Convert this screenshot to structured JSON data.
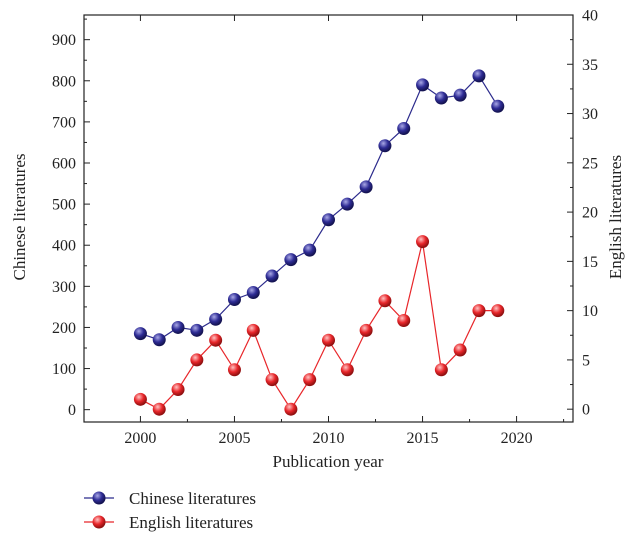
{
  "chart_data": {
    "type": "line",
    "xlabel": "Publication year",
    "ylabel": "Chinese literatures",
    "y2label": "English literatures",
    "xlim": [
      1997,
      2023
    ],
    "ylim": [
      -30,
      960
    ],
    "y2lim": [
      -1.3,
      40
    ],
    "x_ticks": [
      2000,
      2005,
      2010,
      2015,
      2020
    ],
    "y_ticks": [
      0,
      100,
      200,
      300,
      400,
      500,
      600,
      700,
      800,
      900
    ],
    "y2_ticks": [
      0,
      5,
      10,
      15,
      20,
      25,
      30,
      35,
      40
    ],
    "x": [
      2000,
      2001,
      2002,
      2003,
      2004,
      2005,
      2006,
      2007,
      2008,
      2009,
      2010,
      2011,
      2012,
      2013,
      2014,
      2015,
      2016,
      2017,
      2018,
      2019
    ],
    "series": [
      {
        "name": "Chinese literatures",
        "axis": "left",
        "color": "#2b2a8c",
        "values": [
          185,
          170,
          200,
          193,
          220,
          268,
          285,
          325,
          365,
          388,
          462,
          500,
          542,
          642,
          684,
          790,
          758,
          765,
          812,
          738
        ]
      },
      {
        "name": "English literatures",
        "axis": "right",
        "color": "#e8262a",
        "values": [
          1,
          0,
          2,
          5,
          7,
          4,
          8,
          3,
          0,
          3,
          7,
          4,
          8,
          11,
          9,
          17,
          4,
          6,
          10,
          10
        ]
      }
    ],
    "legend_position": "bottom-left",
    "grid": false
  }
}
